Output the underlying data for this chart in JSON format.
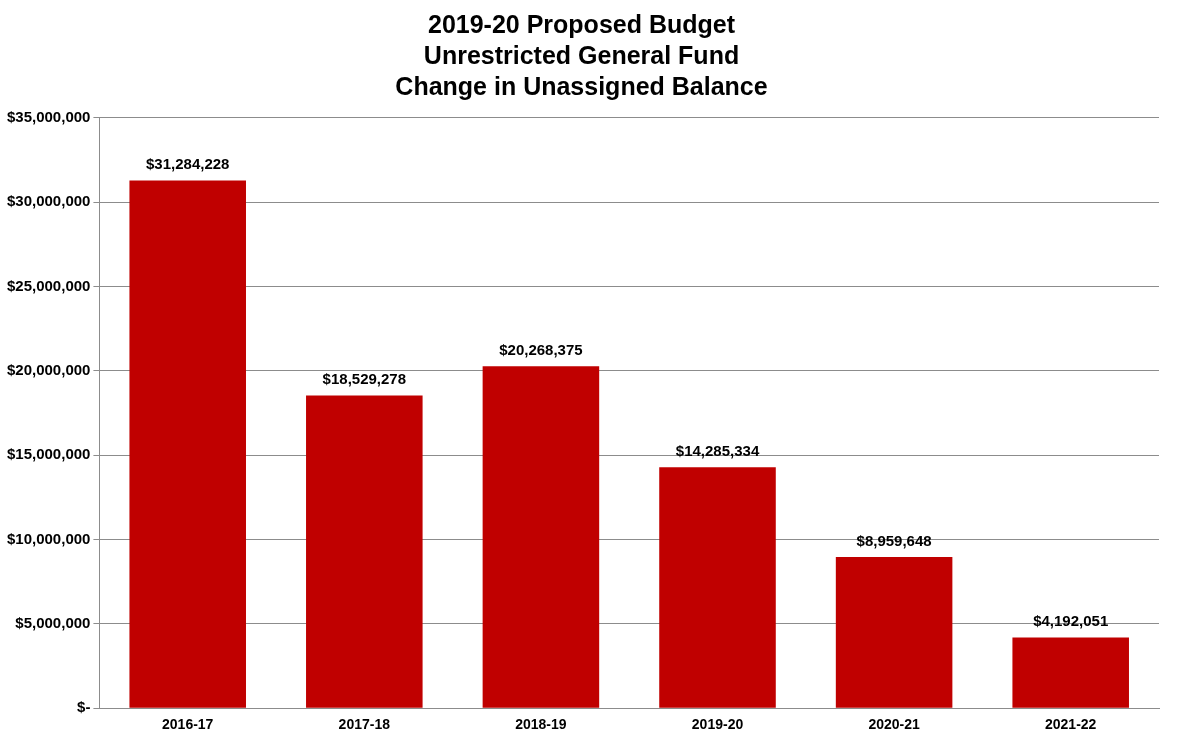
{
  "chart_data": {
    "type": "bar",
    "title": "2019-20 Proposed Budget\nUnrestricted General Fund\nChange in Unassigned Balance",
    "categories": [
      "2016-17",
      "2017-18",
      "2018-19",
      "2019-20",
      "2020-21",
      "2021-22"
    ],
    "values": [
      31284228,
      18529278,
      20268375,
      14285334,
      8959648,
      4192051
    ],
    "value_labels": [
      "$31,284,228",
      "$18,529,278",
      "$20,268,375",
      "$14,285,334",
      "$8,959,648",
      "$4,192,051"
    ],
    "color": "#c00000",
    "ylim": [
      0,
      35000000
    ],
    "yticks": [
      {
        "value": 0,
        "label": "$-"
      },
      {
        "value": 5000000,
        "label": "$5,000,000"
      },
      {
        "value": 10000000,
        "label": "$10,000,000"
      },
      {
        "value": 15000000,
        "label": "$15,000,000"
      },
      {
        "value": 20000000,
        "label": "$20,000,000"
      },
      {
        "value": 25000000,
        "label": "$25,000,000"
      },
      {
        "value": 30000000,
        "label": "$30,000,000"
      },
      {
        "value": 35000000,
        "label": "$35,000,000"
      }
    ],
    "grid": "y"
  }
}
